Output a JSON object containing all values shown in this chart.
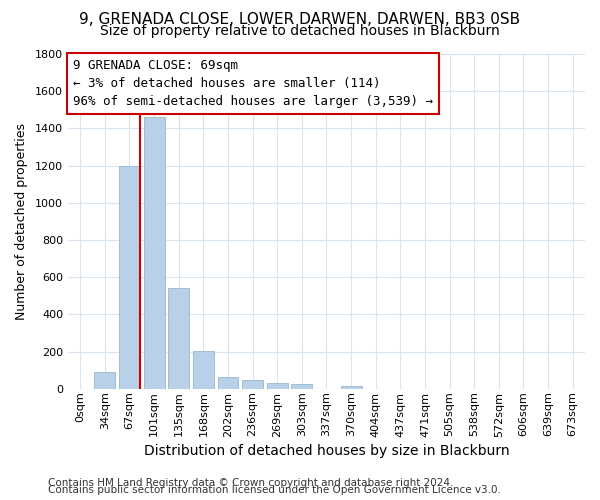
{
  "title1": "9, GRENADA CLOSE, LOWER DARWEN, DARWEN, BB3 0SB",
  "title2": "Size of property relative to detached houses in Blackburn",
  "xlabel": "Distribution of detached houses by size in Blackburn",
  "ylabel": "Number of detached properties",
  "bar_labels": [
    "0sqm",
    "34sqm",
    "67sqm",
    "101sqm",
    "135sqm",
    "168sqm",
    "202sqm",
    "236sqm",
    "269sqm",
    "303sqm",
    "337sqm",
    "370sqm",
    "404sqm",
    "437sqm",
    "471sqm",
    "505sqm",
    "538sqm",
    "572sqm",
    "606sqm",
    "639sqm",
    "673sqm"
  ],
  "bar_values": [
    0,
    90,
    1200,
    1460,
    540,
    205,
    65,
    48,
    33,
    25,
    0,
    14,
    0,
    0,
    0,
    0,
    0,
    0,
    0,
    0,
    0
  ],
  "bar_color": "#b8d0e8",
  "bar_edge_color": "#9ab8d0",
  "property_line_bar_idx": 2,
  "property_line_color": "#cc0000",
  "annotation_line1": "9 GRENADA CLOSE: 69sqm",
  "annotation_line2": "← 3% of detached houses are smaller (114)",
  "annotation_line3": "96% of semi-detached houses are larger (3,539) →",
  "annotation_box_color": "#cc0000",
  "ylim": [
    0,
    1800
  ],
  "yticks": [
    0,
    200,
    400,
    600,
    800,
    1000,
    1200,
    1400,
    1600,
    1800
  ],
  "footer1": "Contains HM Land Registry data © Crown copyright and database right 2024.",
  "footer2": "Contains public sector information licensed under the Open Government Licence v3.0.",
  "background_color": "#ffffff",
  "plot_bg_color": "#ffffff",
  "grid_color": "#d8e4f0",
  "title1_fontsize": 11,
  "title2_fontsize": 10,
  "xlabel_fontsize": 10,
  "ylabel_fontsize": 9,
  "tick_fontsize": 8,
  "annotation_fontsize": 9,
  "footer_fontsize": 7.5
}
